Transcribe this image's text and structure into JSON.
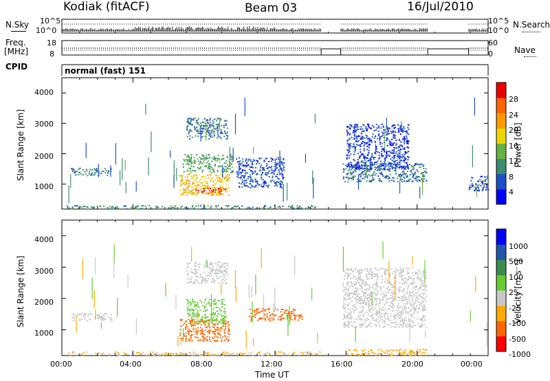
{
  "header": {
    "station": "Kodiak (fitACF)",
    "beam": "Beam 03",
    "date": "16/Jul/2010"
  },
  "panels": {
    "nsky": {
      "left_label": "N.Sky",
      "right_label": "N.Search",
      "left_ticks": [
        "10^5",
        "10^0"
      ],
      "right_ticks": [
        "10^5",
        "10^0"
      ]
    },
    "freq": {
      "left_label_1": "Freq.",
      "left_label_2": "[MHz]",
      "right_label": "Nave",
      "left_ticks": [
        "18",
        "8"
      ],
      "right_ticks": [
        "60",
        "0"
      ]
    },
    "cpid": {
      "label": "CPID",
      "value": "normal (fast) 151"
    }
  },
  "x_axis": {
    "label": "Time UT",
    "ticks": [
      "00:00",
      "04:00",
      "08:00",
      "12:00",
      "16:00",
      "20:00",
      "00:00"
    ]
  },
  "chart_data": [
    {
      "type": "heatmap",
      "name": "power",
      "ylabel": "Slant Range [km]",
      "yticks": [
        "4000",
        "3000",
        "2000",
        "1000"
      ],
      "ylim": [
        180,
        4500
      ],
      "xlim_hours": [
        0,
        24
      ],
      "colorbar_label": "Power [dB]",
      "colorbar_ticks": [
        "28",
        "24",
        "20",
        "16",
        "12",
        "8",
        "4"
      ],
      "colorbar_colors": [
        "#0000ff",
        "#1f4fc8",
        "#3c8c6e",
        "#67b044",
        "#e8d800",
        "#ff9900",
        "#ff6600",
        "#ee0000"
      ],
      "data_gaps_hours": [
        [
          14.6,
          15.7
        ],
        [
          20.6,
          22.9
        ]
      ],
      "features": [
        {
          "t": [
            0.2,
            14.5
          ],
          "r": [
            200,
            320
          ],
          "value": 10
        },
        {
          "t": [
            0.5,
            2.8
          ],
          "r": [
            1300,
            1550
          ],
          "value": 9
        },
        {
          "t": [
            6.6,
            9.4
          ],
          "r": [
            650,
            1350
          ],
          "value": 20
        },
        {
          "t": [
            7.5,
            9.2
          ],
          "r": [
            700,
            900
          ],
          "value": 28
        },
        {
          "t": [
            6.8,
            9.6
          ],
          "r": [
            1400,
            2000
          ],
          "value": 12
        },
        {
          "t": [
            7.0,
            9.3
          ],
          "r": [
            2500,
            3200
          ],
          "value": 8
        },
        {
          "t": [
            9.8,
            12.5
          ],
          "r": [
            900,
            1900
          ],
          "value": 6
        },
        {
          "t": [
            15.8,
            20.5
          ],
          "r": [
            1100,
            1700
          ],
          "value": 8
        },
        {
          "t": [
            16.0,
            19.5
          ],
          "r": [
            1500,
            3000
          ],
          "value": 5
        },
        {
          "t": [
            22.9,
            24
          ],
          "r": [
            800,
            1300
          ],
          "value": 6
        }
      ]
    },
    {
      "type": "heatmap",
      "name": "velocity",
      "ylabel": "Slant Range [km]",
      "yticks": [
        "4000",
        "3000",
        "2000",
        "1000"
      ],
      "ylim": [
        180,
        4500
      ],
      "xlim_hours": [
        0,
        24
      ],
      "colorbar_label": "Velocity [m s⁻¹]",
      "colorbar_ticks": [
        "1000",
        "500",
        "100",
        "25",
        "-25",
        "-100",
        "-500",
        "-1000"
      ],
      "colorbar_colors": [
        "#0000ff",
        "#2255aa",
        "#3d8b50",
        "#66cc33",
        "#c8c8c8",
        "#ffaa00",
        "#ff6600",
        "#ff0000"
      ],
      "data_gaps_hours": [
        [
          14.6,
          15.7
        ],
        [
          20.6,
          22.9
        ]
      ],
      "features": [
        {
          "t": [
            0.2,
            14.5
          ],
          "r": [
            200,
            320
          ],
          "value": -30
        },
        {
          "t": [
            0.5,
            2.8
          ],
          "r": [
            1300,
            1550
          ],
          "value": 0
        },
        {
          "t": [
            6.6,
            9.4
          ],
          "r": [
            650,
            1350
          ],
          "value": -300
        },
        {
          "t": [
            7.0,
            9.2
          ],
          "r": [
            1200,
            2000
          ],
          "value": 60
        },
        {
          "t": [
            7.0,
            9.3
          ],
          "r": [
            2500,
            3200
          ],
          "value": 0
        },
        {
          "t": [
            10.5,
            13.5
          ],
          "r": [
            1300,
            1700
          ],
          "value": -300
        },
        {
          "t": [
            15.8,
            20.5
          ],
          "r": [
            1100,
            3000
          ],
          "value": 0
        },
        {
          "t": [
            16.0,
            20.5
          ],
          "r": [
            200,
            400
          ],
          "value": -60
        }
      ]
    }
  ]
}
